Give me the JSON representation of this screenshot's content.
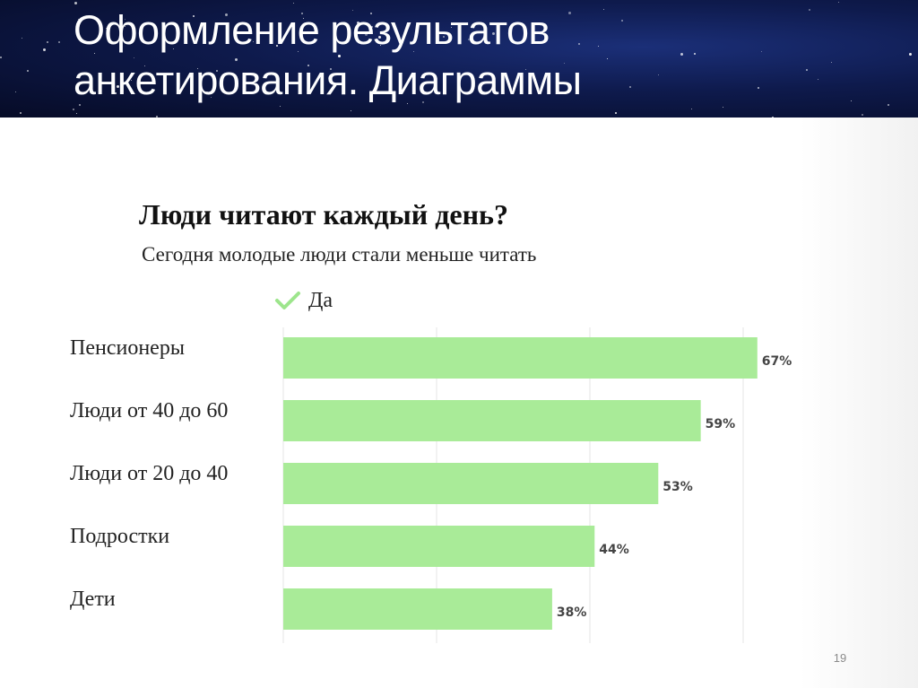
{
  "slide": {
    "title_line1": "Оформление результатов",
    "title_line2": "анкетирования. Диаграммы",
    "page_number": "19"
  },
  "chart_data": {
    "type": "bar",
    "orientation": "horizontal",
    "title": "Люди читают каждый день?",
    "subtitle": "Сегодня молодые люди стали меньше читать",
    "legend_position": "top",
    "categories": [
      "Пенсионеры",
      "Люди от 40 до 60",
      "Люди от 20 до 40",
      "Подростки",
      "Дети"
    ],
    "series": [
      {
        "name": "Да",
        "color": "#a9eb98",
        "values": [
          67,
          59,
          53,
          44,
          38
        ],
        "value_labels": [
          "67%",
          "59%",
          "53%",
          "44%",
          "38%"
        ]
      }
    ],
    "xlim": [
      0,
      65
    ],
    "grid": true,
    "legend_marker_color": "#9de58c"
  }
}
